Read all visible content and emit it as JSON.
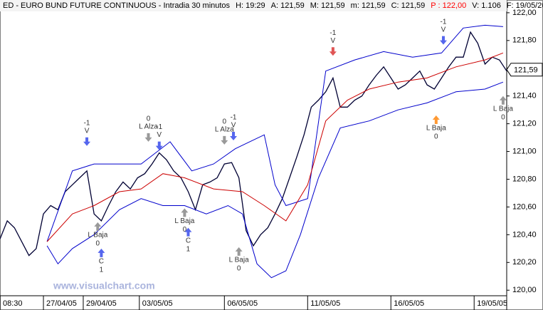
{
  "chart_data": {
    "type": "line",
    "header": [
      {
        "text": "ED - EURO BUND FUTURE CONTINUOUS - Intradia 30 minutos",
        "color": "#000000"
      },
      {
        "text": "H: 19:29",
        "color": "#000000"
      },
      {
        "text": "A: 121,59",
        "color": "#000000"
      },
      {
        "text": "M: 121,59",
        "color": "#000000"
      },
      {
        "text": "m: 121,59",
        "color": "#000000"
      },
      {
        "text": "C: 121,59",
        "color": "#000000"
      },
      {
        "text": "P : 122,00",
        "color": "#ff0000"
      },
      {
        "text": "V: 1.106",
        "color": "#000000"
      },
      {
        "text": "F: 19/05/20",
        "color": "#000000"
      }
    ],
    "watermark": "www.visualchart.com",
    "xlim": [
      0,
      140
    ],
    "ylim": [
      119.96,
      122.02
    ],
    "xticks": [
      {
        "value": 0,
        "label": "08:30"
      },
      {
        "value": 12,
        "label": "27/04/05"
      },
      {
        "value": 23,
        "label": "29/04/05"
      },
      {
        "value": 38.5,
        "label": "03/05/05"
      },
      {
        "value": 62,
        "label": "06/05/05"
      },
      {
        "value": 85,
        "label": "11/05/05"
      },
      {
        "value": 108,
        "label": "16/05/05"
      },
      {
        "value": 131,
        "label": "19/05/05"
      }
    ],
    "yticks": [
      {
        "value": 120,
        "label": "120,00"
      },
      {
        "value": 120.2,
        "label": "120,20"
      },
      {
        "value": 120.4,
        "label": "120,40"
      },
      {
        "value": 120.6,
        "label": "120,60"
      },
      {
        "value": 120.8,
        "label": "120,80"
      },
      {
        "value": 121,
        "label": "121,00"
      },
      {
        "value": 121.2,
        "label": "121,20"
      },
      {
        "value": 121.4,
        "label": "121,40"
      },
      {
        "value": 121.6,
        "label": "121,60"
      },
      {
        "value": 121.8,
        "label": "121,80"
      },
      {
        "value": 122,
        "label": "122,00"
      }
    ],
    "last_price": {
      "value": 121.59,
      "label": "121,59"
    },
    "series": [
      {
        "name": "Price",
        "color": "#000033",
        "x": [
          0,
          2,
          4,
          6,
          8,
          10,
          12,
          14,
          16,
          18,
          20,
          22,
          24,
          26,
          28,
          30,
          32,
          34,
          36,
          38,
          40,
          42,
          44,
          46,
          48,
          50,
          52,
          54,
          56,
          58,
          60,
          62,
          64,
          66,
          68,
          70,
          72,
          74,
          76,
          78,
          80,
          82,
          84,
          86,
          88,
          90,
          92,
          94,
          96,
          98,
          100,
          102,
          104,
          106,
          108,
          110,
          112,
          114,
          116,
          118,
          120,
          122,
          124,
          126,
          128,
          130,
          132,
          134,
          136,
          138,
          140
        ],
        "values": [
          120.37,
          120.5,
          120.45,
          120.35,
          120.25,
          120.3,
          120.55,
          120.61,
          120.58,
          120.71,
          120.76,
          120.81,
          120.86,
          120.55,
          120.5,
          120.61,
          120.71,
          120.78,
          120.73,
          120.81,
          120.84,
          120.91,
          120.99,
          120.94,
          120.86,
          120.81,
          120.71,
          120.58,
          120.76,
          120.78,
          120.81,
          120.91,
          120.92,
          120.81,
          120.43,
          120.32,
          120.4,
          120.45,
          120.55,
          120.66,
          120.81,
          120.96,
          121.12,
          121.32,
          121.37,
          121.43,
          121.53,
          121.32,
          121.32,
          121.37,
          121.4,
          121.48,
          121.55,
          121.61,
          121.53,
          121.45,
          121.48,
          121.53,
          121.58,
          121.48,
          121.45,
          121.53,
          121.61,
          121.68,
          121.68,
          121.86,
          121.78,
          121.63,
          121.68,
          121.66,
          121.58
        ]
      },
      {
        "name": "Upper band",
        "color": "#0000cc",
        "x": [
          13,
          20,
          26,
          32,
          39,
          47,
          53,
          59,
          65,
          69,
          73,
          76,
          79,
          85,
          90,
          98,
          106,
          114,
          122,
          128,
          134,
          139
        ],
        "values": [
          120.35,
          120.86,
          120.91,
          120.91,
          120.91,
          121.07,
          120.86,
          120.91,
          121.02,
          121.07,
          121.12,
          120.76,
          120.61,
          120.66,
          121.58,
          121.66,
          121.72,
          121.68,
          121.71,
          121.89,
          121.91,
          121.9
        ]
      },
      {
        "name": "Middle band",
        "color": "#cc0000",
        "x": [
          13,
          20,
          26,
          33,
          39,
          45,
          51,
          59,
          67,
          73,
          79,
          85,
          90,
          96,
          102,
          110,
          118,
          126,
          134,
          139
        ],
        "values": [
          120.35,
          120.55,
          120.61,
          120.71,
          120.73,
          120.84,
          120.81,
          120.73,
          120.71,
          120.61,
          120.5,
          120.76,
          121.22,
          121.37,
          121.45,
          121.5,
          121.53,
          121.61,
          121.66,
          121.71
        ]
      },
      {
        "name": "Lower band",
        "color": "#0000cc",
        "x": [
          13,
          16,
          20,
          26,
          33,
          39,
          45,
          51,
          57,
          63,
          67,
          71,
          75,
          79,
          83,
          88,
          94,
          102,
          110,
          118,
          126,
          134,
          139
        ],
        "values": [
          120.32,
          120.19,
          120.3,
          120.4,
          120.58,
          120.66,
          120.61,
          120.61,
          120.55,
          120.61,
          120.55,
          120.19,
          120.09,
          120.14,
          120.4,
          120.81,
          121.17,
          121.22,
          121.3,
          121.35,
          121.43,
          121.45,
          121.5
        ]
      }
    ],
    "annotations": [
      {
        "text": [
          "-1",
          "V"
        ],
        "x": 24,
        "y": 121.04,
        "dir": "down",
        "color": "#5566ee"
      },
      {
        "text": [
          "L Baja",
          "0"
        ],
        "x": 27,
        "y": 120.49,
        "dir": "up",
        "color": "#999999"
      },
      {
        "text": [
          "C",
          "1"
        ],
        "x": 28,
        "y": 120.3,
        "dir": "up",
        "color": "#5566ee"
      },
      {
        "text": [
          "0",
          "L Alza"
        ],
        "x": 41,
        "y": 121.07,
        "dir": "down",
        "color": "#999999"
      },
      {
        "text": [
          "-1",
          "V"
        ],
        "x": 44,
        "y": 121.01,
        "dir": "down",
        "color": "#5566ee"
      },
      {
        "text": [
          "L Baja",
          "0"
        ],
        "x": 51,
        "y": 120.59,
        "dir": "up",
        "color": "#999999"
      },
      {
        "text": [
          "C",
          "1"
        ],
        "x": 52,
        "y": 120.45,
        "dir": "up",
        "color": "#5566ee"
      },
      {
        "text": [
          "0",
          "L Alza"
        ],
        "x": 62,
        "y": 121.05,
        "dir": "down",
        "color": "#999999"
      },
      {
        "text": [
          "-1",
          "V"
        ],
        "x": 64.5,
        "y": 121.08,
        "dir": "down",
        "color": "#5566ee"
      },
      {
        "text": [
          "L Baja",
          "0"
        ],
        "x": 66,
        "y": 120.31,
        "dir": "up",
        "color": "#999999"
      },
      {
        "text": [
          "-1",
          "V"
        ],
        "x": 92,
        "y": 121.69,
        "dir": "down",
        "color": "#e05555"
      },
      {
        "text": [
          "-1",
          "V"
        ],
        "x": 122.5,
        "y": 121.77,
        "dir": "down",
        "color": "#5566ee"
      },
      {
        "text": [
          "L Baja",
          "0"
        ],
        "x": 120.5,
        "y": 121.26,
        "dir": "up",
        "color": "#ff9933"
      },
      {
        "text": [
          "L Baja",
          "0"
        ],
        "x": 139,
        "y": 121.4,
        "dir": "up",
        "color": "#999999"
      }
    ]
  }
}
